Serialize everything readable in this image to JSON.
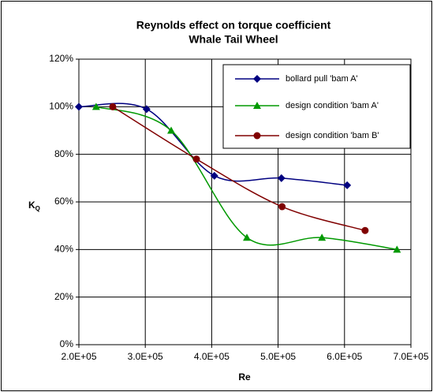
{
  "chart_data": {
    "type": "line",
    "title": [
      "Reynolds effect on torque coefficient",
      "Whale Tail Wheel"
    ],
    "x_label": "Re",
    "y_label": {
      "main": "K",
      "sub": "Q"
    },
    "xlim": [
      200000,
      700000
    ],
    "xticks": [
      {
        "value": 200000,
        "label": "2.0E+05"
      },
      {
        "value": 300000,
        "label": "3.0E+05"
      },
      {
        "value": 400000,
        "label": "4.0E+05"
      },
      {
        "value": 500000,
        "label": "5.0E+05"
      },
      {
        "value": 600000,
        "label": "6.0E+05"
      },
      {
        "value": 700000,
        "label": "7.0E+05"
      }
    ],
    "ylim": [
      0,
      120
    ],
    "yticks": [
      {
        "value": 0,
        "label": "0%"
      },
      {
        "value": 20,
        "label": "20%"
      },
      {
        "value": 40,
        "label": "40%"
      },
      {
        "value": 60,
        "label": "60%"
      },
      {
        "value": 80,
        "label": "80%"
      },
      {
        "value": 100,
        "label": "100%"
      },
      {
        "value": 120,
        "label": "120%"
      }
    ],
    "grid": true,
    "legend": "top-right",
    "series": [
      {
        "name": "bollard pull 'bam A'",
        "color": "#000080",
        "marker": "diamond",
        "x": [
          200000,
          302000,
          404000,
          505000,
          604000
        ],
        "values": [
          100,
          99,
          71,
          70,
          67
        ]
      },
      {
        "name": "design condition 'bam A'",
        "color": "#009900",
        "marker": "triangle",
        "x": [
          226000,
          339000,
          453000,
          566000,
          679000
        ],
        "values": [
          100,
          90,
          45,
          45,
          40
        ]
      },
      {
        "name": "design condition 'bam B'",
        "color": "#800000",
        "marker": "circle",
        "x": [
          251000,
          377000,
          506000,
          631000
        ],
        "values": [
          100,
          78,
          58,
          48
        ]
      }
    ]
  }
}
